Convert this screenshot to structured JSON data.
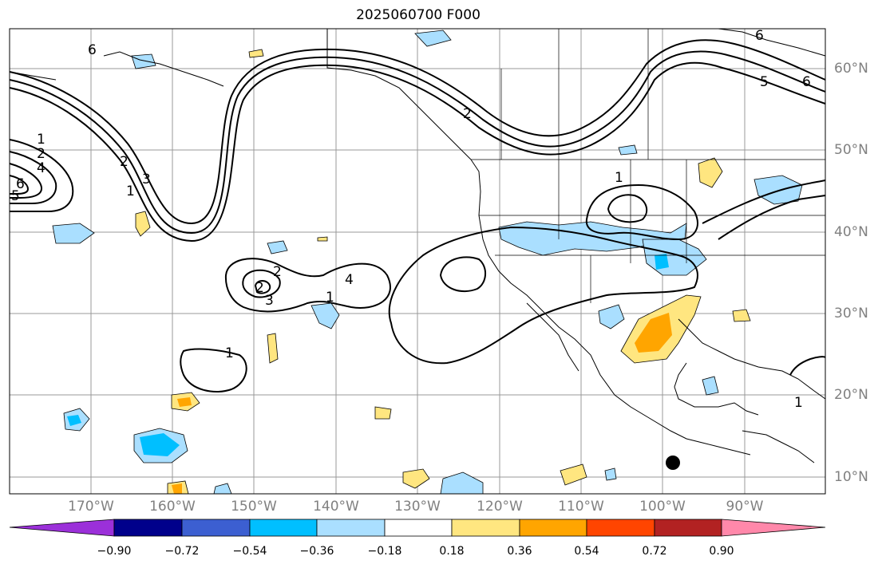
{
  "title": "2025060700 F000",
  "lon_labels": [
    "170°W",
    "160°W",
    "150°W",
    "140°W",
    "130°W",
    "120°W",
    "110°W",
    "100°W",
    "90°W"
  ],
  "lat_labels": [
    "60°N",
    "50°N",
    "40°N",
    "30°N",
    "20°N",
    "10°N"
  ],
  "contour_labels": [
    "6",
    "1",
    "2",
    "4",
    "5",
    "6",
    "2",
    "3",
    "1",
    "2",
    "4",
    "1",
    "2",
    "3",
    "1",
    "2",
    "1",
    "6",
    "5",
    "6",
    "1"
  ],
  "colorbar": {
    "ticks": [
      "−0.90",
      "−0.72",
      "−0.54",
      "−0.36",
      "−0.18",
      "0.18",
      "0.36",
      "0.54",
      "0.72",
      "0.90"
    ],
    "colors": [
      "#9b30d9",
      "#00008b",
      "#3c5fd1",
      "#00bfff",
      "#aadfff",
      "#ffffff",
      "#ffe680",
      "#ffa500",
      "#ff4500",
      "#b22222",
      "#ff88aa"
    ]
  }
}
